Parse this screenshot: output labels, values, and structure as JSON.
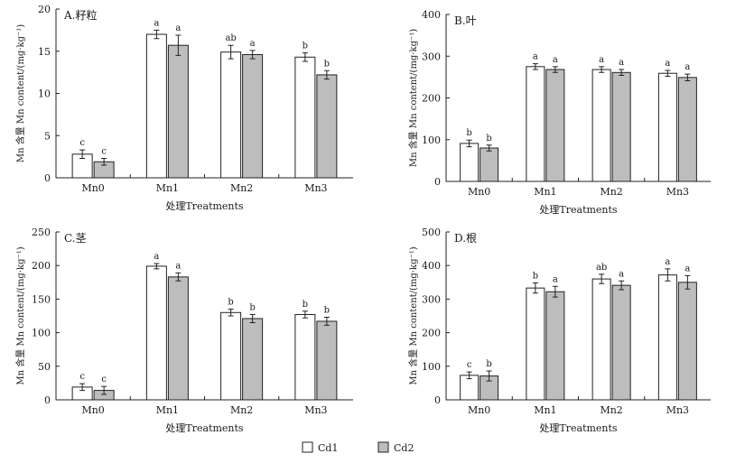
{
  "chart_data": [
    {
      "type": "bar",
      "title": "A.籽粒",
      "xlabel": "处理Treatments",
      "ylabel": "Mn 含量 Mn content/(mg·kg⁻¹)",
      "ylim": [
        0,
        20
      ],
      "yticks": [
        "0",
        "5",
        "10",
        "15",
        "20"
      ],
      "categories": [
        "Mn0",
        "Mn1",
        "Mn2",
        "Mn3"
      ],
      "series": [
        {
          "name": "Cd1",
          "values": [
            2.8,
            17.0,
            14.9,
            14.3
          ],
          "errors": [
            0.5,
            0.5,
            0.8,
            0.5
          ],
          "letters": [
            "c",
            "a",
            "ab",
            "b"
          ]
        },
        {
          "name": "Cd2",
          "values": [
            1.9,
            15.7,
            14.6,
            12.2
          ],
          "errors": [
            0.4,
            1.2,
            0.5,
            0.5
          ],
          "letters": [
            "c",
            "a",
            "a",
            "b"
          ]
        }
      ]
    },
    {
      "type": "bar",
      "title": "B.叶",
      "xlabel": "处理Treatments",
      "ylabel": "Mn 含量 Mn content/(mg·kg⁻¹)",
      "ylim": [
        0,
        400
      ],
      "yticks": [
        "0",
        "100",
        "200",
        "300",
        "400"
      ],
      "categories": [
        "Mn0",
        "Mn1",
        "Mn2",
        "Mn3"
      ],
      "series": [
        {
          "name": "Cd1",
          "values": [
            91,
            275,
            268,
            259
          ],
          "errors": [
            8,
            7,
            7,
            7
          ],
          "letters": [
            "b",
            "a",
            "a",
            "a"
          ]
        },
        {
          "name": "Cd2",
          "values": [
            80,
            268,
            261,
            249
          ],
          "errors": [
            7,
            7,
            7,
            8
          ],
          "letters": [
            "b",
            "a",
            "a",
            "a"
          ]
        }
      ]
    },
    {
      "type": "bar",
      "title": "C.茎",
      "xlabel": "处理Treatments",
      "ylabel": "Mn 含量 Mn content/(mg·kg⁻¹)",
      "ylim": [
        0,
        250
      ],
      "yticks": [
        "0",
        "50",
        "100",
        "150",
        "200",
        "250"
      ],
      "categories": [
        "Mn0",
        "Mn1",
        "Mn2",
        "Mn3"
      ],
      "series": [
        {
          "name": "Cd1",
          "values": [
            19,
            199,
            130,
            127
          ],
          "errors": [
            5,
            4,
            5,
            5
          ],
          "letters": [
            "c",
            "a",
            "b",
            "b"
          ]
        },
        {
          "name": "Cd2",
          "values": [
            14,
            183,
            121,
            117
          ],
          "errors": [
            6,
            6,
            6,
            6
          ],
          "letters": [
            "c",
            "a",
            "b",
            "b"
          ]
        }
      ]
    },
    {
      "type": "bar",
      "title": "D.根",
      "xlabel": "处理Treatments",
      "ylabel": "Mn 含量 Mn content/(mg·kg⁻¹)",
      "ylim": [
        0,
        500
      ],
      "yticks": [
        "0",
        "100",
        "200",
        "300",
        "400",
        "500"
      ],
      "categories": [
        "Mn0",
        "Mn1",
        "Mn2",
        "Mn3"
      ],
      "series": [
        {
          "name": "Cd1",
          "values": [
            73,
            333,
            360,
            372
          ],
          "errors": [
            10,
            15,
            14,
            18
          ],
          "letters": [
            "c",
            "b",
            "ab",
            "a"
          ]
        },
        {
          "name": "Cd2",
          "values": [
            71,
            322,
            341,
            350
          ],
          "errors": [
            15,
            16,
            13,
            20
          ],
          "letters": [
            "b",
            "a",
            "a",
            "a"
          ]
        }
      ]
    }
  ],
  "legend": [
    {
      "label": "Cd1",
      "color": "#ffffff"
    },
    {
      "label": "Cd2",
      "color": "#bdbdbd"
    }
  ]
}
